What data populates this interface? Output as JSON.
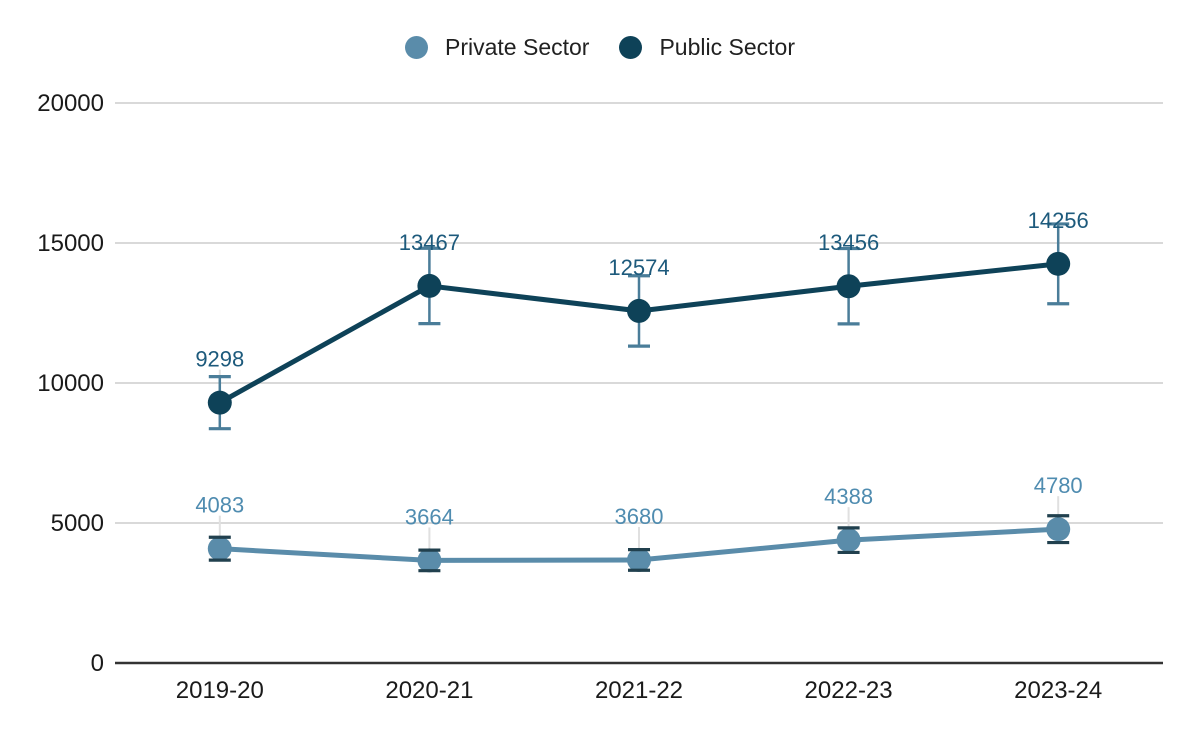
{
  "chart_data": {
    "type": "line",
    "title": "",
    "xlabel": "",
    "ylabel": "",
    "categories": [
      "2019-20",
      "2020-21",
      "2021-22",
      "2022-23",
      "2023-24"
    ],
    "series": [
      {
        "name": "Private Sector",
        "values": [
          4083,
          3664,
          3680,
          4388,
          4780
        ],
        "color": "#5a8caa",
        "label_color": "#4f8cb0",
        "error_bar_color": "#21404e"
      },
      {
        "name": "Public Sector",
        "values": [
          9298,
          13467,
          12574,
          13456,
          14256
        ],
        "color": "#0e4258",
        "label_color": "#1d5a7c",
        "error_bar_color": "#4a7d99"
      }
    ],
    "ylim": [
      0,
      20000
    ],
    "yticks": [
      0,
      5000,
      10000,
      15000,
      20000
    ],
    "y_tick_labels": [
      "0",
      "5000",
      "10000",
      "15000",
      "20000"
    ],
    "error_bars_percent": 10,
    "point_labels_visible": true,
    "grid": "horizontal",
    "legend_position": "top"
  },
  "legend": {
    "items": [
      {
        "label": "Private Sector",
        "color": "#5a8caa",
        "icon": "circle-swatch-icon"
      },
      {
        "label": "Public Sector",
        "color": "#0e4258",
        "icon": "circle-swatch-icon"
      }
    ]
  },
  "styles": {
    "background": "#ffffff",
    "gridline_color": "#d9d9d9",
    "axis_line_color": "#333333",
    "axis_text_color": "#1a1a1a",
    "leader_line_color": "#e0e0e0",
    "legend_text_color": "#212121"
  }
}
